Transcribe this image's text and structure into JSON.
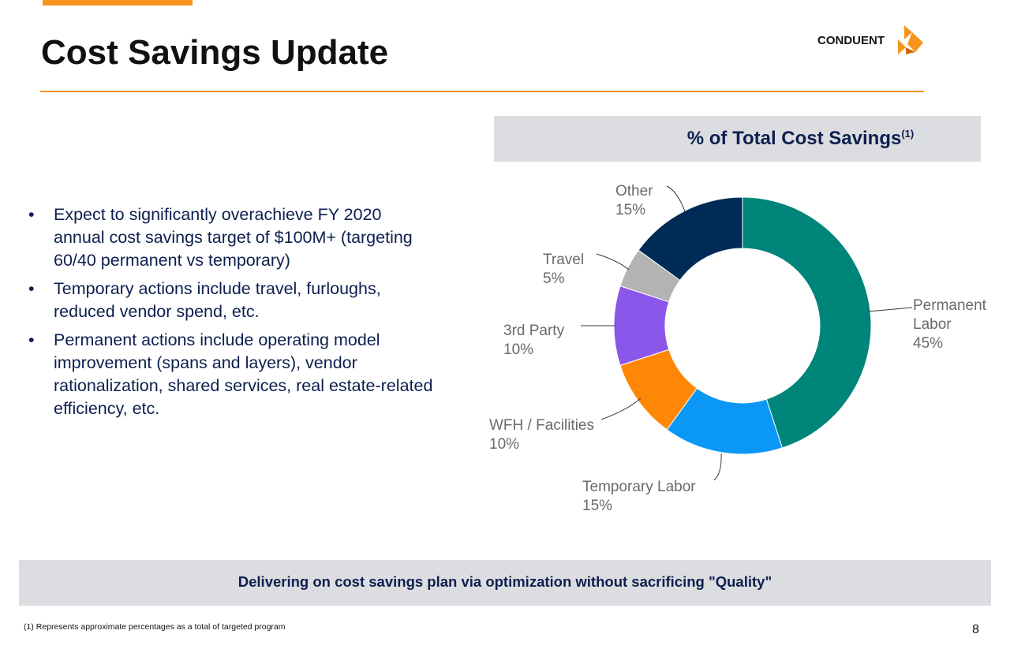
{
  "header": {
    "title": "Cost Savings Update",
    "logo_text": "CONDUENT"
  },
  "bullets": [
    "Expect to significantly overachieve FY 2020 annual cost savings target of $100M+ (targeting 60/40 permanent vs temporary)",
    "Temporary actions include travel, furloughs, reduced vendor spend, etc.",
    "Permanent actions include operating model improvement (spans and layers), vendor rationalization, shared services, real estate-related efficiency, etc."
  ],
  "chart_header": {
    "title": "% of Total Cost Savings",
    "footnote_ref": "(1)"
  },
  "chart_data": {
    "type": "pie",
    "style": "donut",
    "title": "% of Total Cost Savings",
    "categories": [
      "Permanent Labor",
      "Temporary Labor",
      "WFH / Facilities",
      "3rd Party",
      "Travel",
      "Other"
    ],
    "values": [
      45,
      15,
      10,
      10,
      5,
      15
    ],
    "value_labels": [
      "45%",
      "15%",
      "10%",
      "10%",
      "5%",
      "15%"
    ],
    "colors": [
      "#00857a",
      "#0a97f5",
      "#ff8706",
      "#8b57ea",
      "#b3b3b3",
      "#002b56"
    ]
  },
  "banner": {
    "text": "Delivering on cost savings plan via optimization without sacrificing \"Quality\""
  },
  "footer": {
    "footnote": "(1) Represents approximate percentages as a total of targeted program",
    "page_number": "8"
  },
  "colors": {
    "accent": "#f7941d",
    "navy": "#0d1f4f",
    "panel": "#dcdde0"
  }
}
